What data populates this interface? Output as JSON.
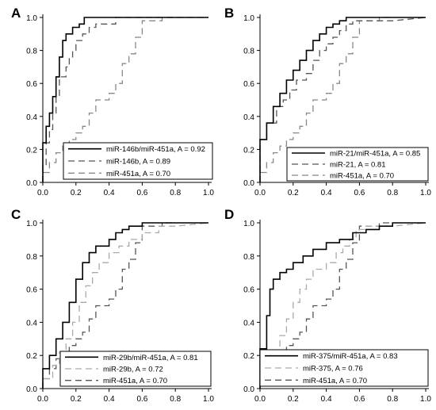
{
  "chart_data": [
    {
      "type": "line",
      "panel_label": "A",
      "xlim": [
        0.0,
        1.0
      ],
      "ylim": [
        0.0,
        1.0
      ],
      "xticks": [
        "0.0",
        "0.2",
        "0.4",
        "0.6",
        "0.8",
        "1.0"
      ],
      "yticks": [
        "0.0",
        "0.2",
        "0.4",
        "0.6",
        "0.8",
        "1.0"
      ],
      "grid": false,
      "legend_position": "bottom-right",
      "series": [
        {
          "name": "miR-146b/miR-451a, A = 0.92",
          "style": "solid",
          "color": "#000000",
          "x": [
            0.0,
            0.0,
            0.02,
            0.02,
            0.04,
            0.04,
            0.06,
            0.06,
            0.08,
            0.08,
            0.1,
            0.1,
            0.12,
            0.12,
            0.14,
            0.14,
            0.18,
            0.18,
            0.22,
            0.22,
            0.25,
            0.25,
            0.6,
            1.0
          ],
          "y": [
            0.0,
            0.24,
            0.24,
            0.34,
            0.34,
            0.42,
            0.42,
            0.52,
            0.52,
            0.64,
            0.64,
            0.76,
            0.76,
            0.86,
            0.86,
            0.9,
            0.9,
            0.94,
            0.94,
            0.96,
            0.96,
            1.0,
            1.0,
            1.0
          ]
        },
        {
          "name": "miR-146b, A = 0.89",
          "style": "dashed",
          "color": "#555555",
          "x": [
            0.0,
            0.0,
            0.02,
            0.02,
            0.04,
            0.04,
            0.06,
            0.06,
            0.08,
            0.08,
            0.1,
            0.1,
            0.14,
            0.14,
            0.16,
            0.16,
            0.18,
            0.18,
            0.2,
            0.2,
            0.24,
            0.24,
            0.28,
            0.28,
            0.32,
            0.32,
            0.44,
            0.44,
            0.6,
            1.0
          ],
          "y": [
            0.0,
            0.1,
            0.1,
            0.24,
            0.24,
            0.32,
            0.32,
            0.42,
            0.42,
            0.52,
            0.52,
            0.64,
            0.64,
            0.7,
            0.7,
            0.76,
            0.76,
            0.8,
            0.8,
            0.86,
            0.86,
            0.9,
            0.9,
            0.94,
            0.94,
            0.96,
            0.96,
            1.0,
            1.0,
            1.0
          ]
        },
        {
          "name": "miR-451a, A = 0.70",
          "style": "dashed",
          "color": "#888888",
          "x": [
            0.0,
            0.0,
            0.04,
            0.04,
            0.08,
            0.08,
            0.12,
            0.12,
            0.16,
            0.16,
            0.2,
            0.2,
            0.24,
            0.24,
            0.28,
            0.28,
            0.32,
            0.32,
            0.36,
            0.36,
            0.4,
            0.4,
            0.44,
            0.44,
            0.48,
            0.48,
            0.52,
            0.52,
            0.56,
            0.56,
            0.6,
            0.6,
            0.64,
            0.64,
            0.72,
            0.72,
            0.8
          ],
          "y": [
            0.0,
            0.06,
            0.06,
            0.12,
            0.12,
            0.18,
            0.18,
            0.22,
            0.22,
            0.26,
            0.26,
            0.3,
            0.3,
            0.34,
            0.34,
            0.42,
            0.42,
            0.5,
            0.5,
            0.5,
            0.5,
            0.54,
            0.54,
            0.6,
            0.6,
            0.72,
            0.72,
            0.78,
            0.78,
            0.88,
            0.88,
            0.98,
            0.98,
            0.98,
            0.98,
            1.0,
            1.0
          ]
        }
      ]
    },
    {
      "type": "line",
      "panel_label": "B",
      "xlim": [
        0.0,
        1.0
      ],
      "ylim": [
        0.0,
        1.0
      ],
      "xticks": [
        "0.0",
        "0.2",
        "0.4",
        "0.6",
        "0.8",
        "1.0"
      ],
      "yticks": [
        "0.0",
        "0.2",
        "0.4",
        "0.6",
        "0.8",
        "1.0"
      ],
      "grid": false,
      "legend_position": "bottom-right",
      "series": [
        {
          "name": "miR-21/miR-451a, A = 0.85",
          "style": "solid",
          "color": "#000000",
          "x": [
            0.0,
            0.0,
            0.04,
            0.04,
            0.08,
            0.08,
            0.12,
            0.12,
            0.16,
            0.16,
            0.2,
            0.2,
            0.24,
            0.24,
            0.28,
            0.28,
            0.32,
            0.32,
            0.36,
            0.36,
            0.4,
            0.4,
            0.44,
            0.44,
            0.48,
            0.48,
            0.52,
            0.52,
            0.6,
            1.0
          ],
          "y": [
            0.0,
            0.26,
            0.26,
            0.36,
            0.36,
            0.46,
            0.46,
            0.54,
            0.54,
            0.62,
            0.62,
            0.68,
            0.68,
            0.74,
            0.74,
            0.8,
            0.8,
            0.86,
            0.86,
            0.9,
            0.9,
            0.94,
            0.94,
            0.96,
            0.96,
            0.98,
            0.98,
            1.0,
            1.0,
            1.0
          ]
        },
        {
          "name": "miR-21, A = 0.81",
          "style": "dashed",
          "color": "#555555",
          "x": [
            0.0,
            0.0,
            0.04,
            0.04,
            0.1,
            0.1,
            0.14,
            0.14,
            0.18,
            0.18,
            0.22,
            0.22,
            0.28,
            0.28,
            0.32,
            0.32,
            0.36,
            0.36,
            0.4,
            0.4,
            0.44,
            0.44,
            0.48,
            0.48,
            0.52,
            0.52,
            0.56,
            0.56,
            0.8,
            1.0
          ],
          "y": [
            0.0,
            0.26,
            0.26,
            0.36,
            0.36,
            0.46,
            0.46,
            0.5,
            0.5,
            0.56,
            0.56,
            0.62,
            0.62,
            0.66,
            0.66,
            0.74,
            0.74,
            0.8,
            0.8,
            0.84,
            0.84,
            0.88,
            0.88,
            0.92,
            0.92,
            0.96,
            0.96,
            0.98,
            0.98,
            1.0
          ]
        },
        {
          "name": "miR-451a, A = 0.70",
          "style": "dashed",
          "color": "#888888",
          "x": [
            0.0,
            0.0,
            0.04,
            0.04,
            0.08,
            0.08,
            0.12,
            0.12,
            0.16,
            0.16,
            0.2,
            0.2,
            0.24,
            0.24,
            0.28,
            0.28,
            0.32,
            0.32,
            0.36,
            0.36,
            0.4,
            0.4,
            0.44,
            0.44,
            0.48,
            0.48,
            0.52,
            0.52,
            0.56,
            0.56,
            0.6,
            0.6,
            0.64,
            0.64,
            0.72,
            0.72,
            0.8
          ],
          "y": [
            0.0,
            0.06,
            0.06,
            0.12,
            0.12,
            0.18,
            0.18,
            0.22,
            0.22,
            0.26,
            0.26,
            0.3,
            0.3,
            0.34,
            0.34,
            0.42,
            0.42,
            0.5,
            0.5,
            0.5,
            0.5,
            0.54,
            0.54,
            0.6,
            0.6,
            0.72,
            0.72,
            0.78,
            0.78,
            0.88,
            0.88,
            0.98,
            0.98,
            0.98,
            0.98,
            1.0,
            1.0
          ]
        }
      ]
    },
    {
      "type": "line",
      "panel_label": "C",
      "xlim": [
        0.0,
        1.0
      ],
      "ylim": [
        0.0,
        1.0
      ],
      "xticks": [
        "0.0",
        "0.2",
        "0.4",
        "0.6",
        "0.8",
        "1.0"
      ],
      "yticks": [
        "0.0",
        "0.2",
        "0.4",
        "0.6",
        "0.8",
        "1.0"
      ],
      "grid": false,
      "legend_position": "bottom-right",
      "series": [
        {
          "name": "miR-29b/miR-451a, A = 0.81",
          "style": "solid",
          "color": "#000000",
          "x": [
            0.0,
            0.0,
            0.04,
            0.04,
            0.08,
            0.08,
            0.12,
            0.12,
            0.16,
            0.16,
            0.2,
            0.2,
            0.24,
            0.24,
            0.28,
            0.28,
            0.32,
            0.32,
            0.36,
            0.36,
            0.4,
            0.4,
            0.44,
            0.44,
            0.48,
            0.48,
            0.52,
            0.52,
            0.6,
            0.6,
            0.68,
            1.0
          ],
          "y": [
            0.0,
            0.12,
            0.12,
            0.2,
            0.2,
            0.3,
            0.3,
            0.4,
            0.4,
            0.52,
            0.52,
            0.66,
            0.66,
            0.76,
            0.76,
            0.82,
            0.82,
            0.86,
            0.86,
            0.86,
            0.86,
            0.9,
            0.9,
            0.94,
            0.94,
            0.96,
            0.96,
            0.98,
            0.98,
            1.0,
            1.0,
            1.0
          ]
        },
        {
          "name": "miR-29b, A = 0.72",
          "style": "dashed",
          "color": "#aaaaaa",
          "x": [
            0.0,
            0.0,
            0.06,
            0.06,
            0.1,
            0.1,
            0.14,
            0.14,
            0.18,
            0.18,
            0.22,
            0.22,
            0.26,
            0.26,
            0.3,
            0.3,
            0.34,
            0.34,
            0.4,
            0.4,
            0.46,
            0.46,
            0.52,
            0.52,
            0.6,
            0.6,
            0.7,
            0.7,
            0.8,
            1.0
          ],
          "y": [
            0.0,
            0.06,
            0.06,
            0.14,
            0.14,
            0.22,
            0.22,
            0.3,
            0.3,
            0.4,
            0.4,
            0.52,
            0.52,
            0.62,
            0.62,
            0.7,
            0.7,
            0.76,
            0.76,
            0.82,
            0.82,
            0.86,
            0.86,
            0.9,
            0.9,
            0.94,
            0.94,
            0.98,
            0.98,
            1.0
          ]
        },
        {
          "name": "miR-451a, A = 0.70",
          "style": "dashed",
          "color": "#555555",
          "x": [
            0.0,
            0.0,
            0.04,
            0.04,
            0.08,
            0.08,
            0.12,
            0.12,
            0.16,
            0.16,
            0.2,
            0.2,
            0.24,
            0.24,
            0.28,
            0.28,
            0.32,
            0.32,
            0.36,
            0.36,
            0.4,
            0.4,
            0.44,
            0.44,
            0.48,
            0.48,
            0.52,
            0.52,
            0.56,
            0.56,
            0.6,
            0.6,
            0.64,
            0.64,
            0.72,
            0.72,
            0.8
          ],
          "y": [
            0.0,
            0.06,
            0.06,
            0.12,
            0.12,
            0.18,
            0.18,
            0.22,
            0.22,
            0.26,
            0.26,
            0.3,
            0.3,
            0.34,
            0.34,
            0.42,
            0.42,
            0.5,
            0.5,
            0.5,
            0.5,
            0.54,
            0.54,
            0.6,
            0.6,
            0.72,
            0.72,
            0.78,
            0.78,
            0.88,
            0.88,
            0.98,
            0.98,
            0.98,
            0.98,
            1.0,
            1.0
          ]
        }
      ]
    },
    {
      "type": "line",
      "panel_label": "D",
      "xlim": [
        0.0,
        1.0
      ],
      "ylim": [
        0.0,
        1.0
      ],
      "xticks": [
        "0.0",
        "0.2",
        "0.4",
        "0.6",
        "0.8",
        "1.0"
      ],
      "yticks": [
        "0.0",
        "0.2",
        "0.4",
        "0.6",
        "0.8",
        "1.0"
      ],
      "grid": false,
      "legend_position": "bottom-right",
      "series": [
        {
          "name": "miR-375/miR-451a, A = 0.83",
          "style": "solid",
          "color": "#000000",
          "x": [
            0.0,
            0.0,
            0.04,
            0.04,
            0.06,
            0.06,
            0.08,
            0.08,
            0.12,
            0.12,
            0.16,
            0.16,
            0.2,
            0.2,
            0.26,
            0.26,
            0.32,
            0.32,
            0.4,
            0.4,
            0.48,
            0.48,
            0.56,
            0.56,
            0.64,
            0.64,
            0.72,
            0.72,
            0.8,
            0.8,
            1.0
          ],
          "y": [
            0.0,
            0.24,
            0.24,
            0.44,
            0.44,
            0.6,
            0.6,
            0.66,
            0.66,
            0.7,
            0.7,
            0.72,
            0.72,
            0.76,
            0.76,
            0.8,
            0.8,
            0.84,
            0.84,
            0.88,
            0.88,
            0.9,
            0.9,
            0.94,
            0.94,
            0.96,
            0.96,
            0.98,
            0.98,
            1.0,
            1.0
          ]
        },
        {
          "name": "miR-375, A = 0.76",
          "style": "dashed",
          "color": "#aaaaaa",
          "x": [
            0.0,
            0.0,
            0.06,
            0.06,
            0.12,
            0.12,
            0.16,
            0.16,
            0.2,
            0.2,
            0.24,
            0.24,
            0.28,
            0.28,
            0.32,
            0.32,
            0.4,
            0.4,
            0.46,
            0.46,
            0.5,
            0.5,
            0.54,
            0.54,
            0.58,
            0.58,
            0.64,
            0.64,
            0.8,
            1.0
          ],
          "y": [
            0.0,
            0.14,
            0.14,
            0.22,
            0.22,
            0.32,
            0.32,
            0.42,
            0.42,
            0.52,
            0.52,
            0.6,
            0.6,
            0.66,
            0.66,
            0.72,
            0.72,
            0.76,
            0.76,
            0.82,
            0.82,
            0.86,
            0.86,
            0.9,
            0.9,
            0.96,
            0.96,
            0.98,
            0.98,
            1.0
          ]
        },
        {
          "name": "miR-451a, A = 0.70",
          "style": "dashed",
          "color": "#555555",
          "x": [
            0.0,
            0.0,
            0.04,
            0.04,
            0.08,
            0.08,
            0.12,
            0.12,
            0.16,
            0.16,
            0.2,
            0.2,
            0.24,
            0.24,
            0.28,
            0.28,
            0.32,
            0.32,
            0.36,
            0.36,
            0.4,
            0.4,
            0.44,
            0.44,
            0.48,
            0.48,
            0.52,
            0.52,
            0.56,
            0.56,
            0.6,
            0.6,
            0.64,
            0.64,
            0.72,
            0.72,
            0.8
          ],
          "y": [
            0.0,
            0.06,
            0.06,
            0.12,
            0.12,
            0.18,
            0.18,
            0.22,
            0.22,
            0.26,
            0.26,
            0.3,
            0.3,
            0.34,
            0.34,
            0.42,
            0.42,
            0.5,
            0.5,
            0.5,
            0.5,
            0.54,
            0.54,
            0.6,
            0.6,
            0.72,
            0.72,
            0.78,
            0.78,
            0.88,
            0.88,
            0.98,
            0.98,
            0.98,
            0.98,
            1.0,
            1.0
          ]
        }
      ]
    }
  ]
}
